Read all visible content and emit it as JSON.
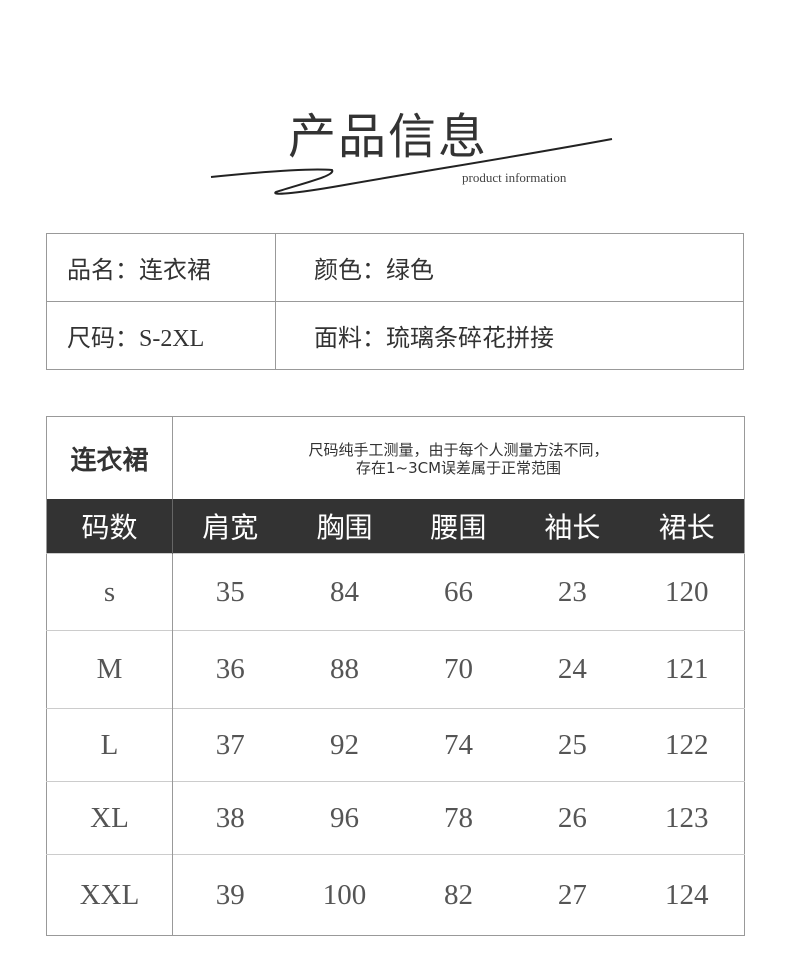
{
  "header": {
    "title": "产品信息",
    "subtitle": "product information"
  },
  "info": {
    "rows": [
      [
        "品名：连衣裙",
        "颜色：绿色"
      ],
      [
        "尺码：S-2XL",
        "面料：琉璃条碎花拼接"
      ]
    ]
  },
  "size_table": {
    "name": "连衣裙",
    "note_line1": "尺码纯手工测量，由于每个人测量方法不同，",
    "note_line2": "存在1~3CM误差属于正常范围",
    "columns": [
      "码数",
      "肩宽",
      "胸围",
      "腰围",
      "袖长",
      "裙长"
    ],
    "rows": [
      [
        "s",
        "35",
        "84",
        "66",
        "23",
        "120"
      ],
      [
        "M",
        "36",
        "88",
        "70",
        "24",
        "121"
      ],
      [
        "L",
        "37",
        "92",
        "74",
        "25",
        "122"
      ],
      [
        "XL",
        "38",
        "96",
        "78",
        "26",
        "123"
      ],
      [
        "XXL",
        "39",
        "100",
        "82",
        "27",
        "124"
      ]
    ]
  }
}
